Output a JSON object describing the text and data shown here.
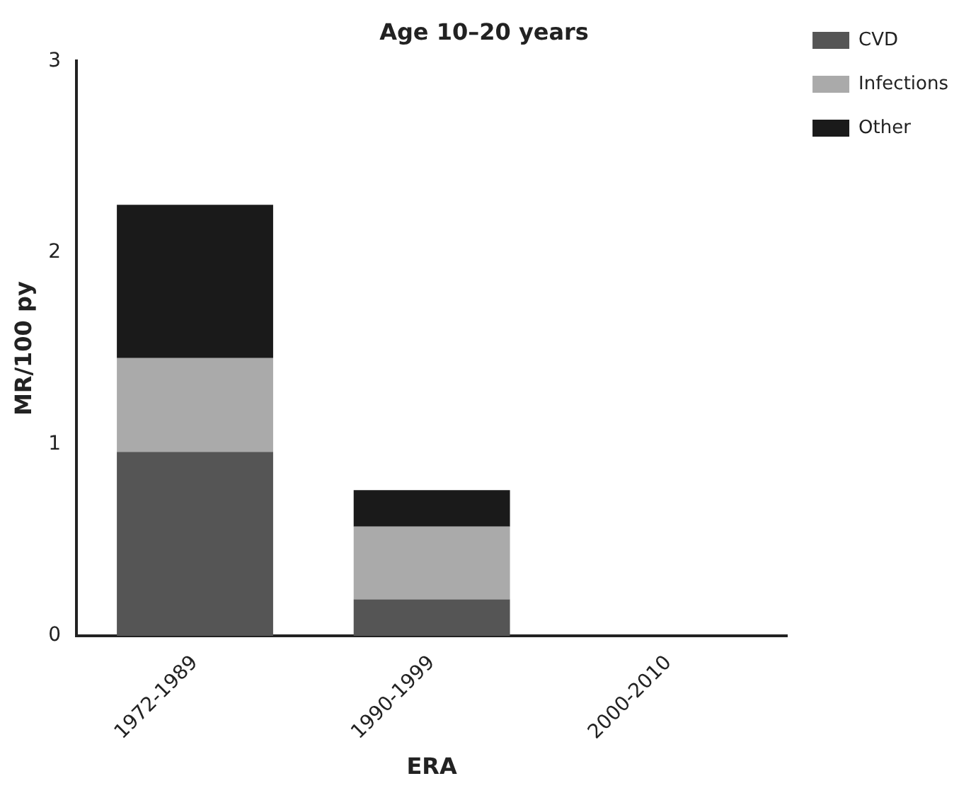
{
  "chart_data": {
    "type": "bar",
    "title": "Age 10–20 years",
    "xlabel": "ERA",
    "ylabel": "MR/100 py",
    "categories": [
      "1972-1989",
      "1990-1999",
      "2000-2010"
    ],
    "stacked": true,
    "series": [
      {
        "name": "CVD",
        "color": "#555555",
        "values": [
          0.96,
          0.19,
          0
        ]
      },
      {
        "name": "Infections",
        "color": "#aaaaaa",
        "values": [
          0.49,
          0.38,
          0
        ]
      },
      {
        "name": "Other",
        "color": "#1a1a1a",
        "values": [
          0.8,
          0.19,
          0
        ]
      }
    ],
    "ylim": [
      0,
      3
    ],
    "yticks": [
      0,
      1,
      2,
      3
    ],
    "grid": false,
    "legend": "top right"
  }
}
